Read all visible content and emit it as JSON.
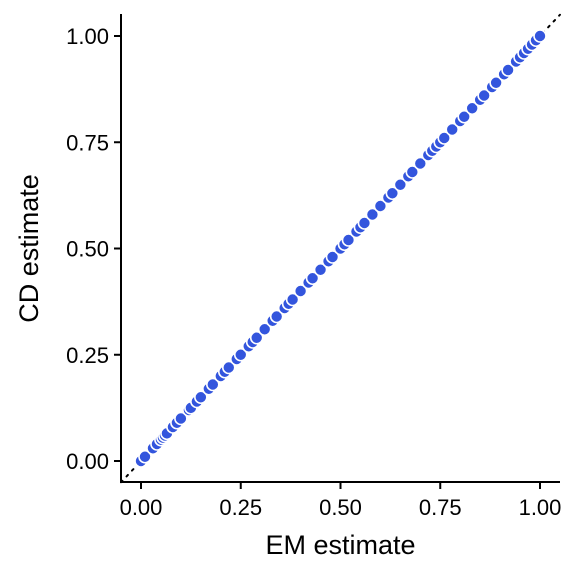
{
  "chart_data": {
    "type": "scatter",
    "title": "",
    "xlabel": "EM estimate",
    "ylabel": "CD estimate",
    "xlim": [
      -0.05,
      1.05
    ],
    "ylim": [
      -0.05,
      1.05
    ],
    "x_ticks": [
      0.0,
      0.25,
      0.5,
      0.75,
      1.0
    ],
    "y_ticks": [
      0.0,
      0.25,
      0.5,
      0.75,
      1.0
    ],
    "x_tick_labels": [
      "0.00",
      "0.25",
      "0.50",
      "0.75",
      "1.00"
    ],
    "y_tick_labels": [
      "0.00",
      "0.25",
      "0.50",
      "0.75",
      "1.00"
    ],
    "grid": false,
    "legend": "none",
    "reference_line": {
      "style": "dotted",
      "slope": 1,
      "intercept": 0,
      "color": "#000000"
    },
    "point_color": "#3355dd",
    "point_edge_color": "#ffffff",
    "series": [
      {
        "x": [
          0.0,
          0.01,
          0.03,
          0.04,
          0.05,
          0.055,
          0.06,
          0.065,
          0.08,
          0.09,
          0.1,
          0.12,
          0.125,
          0.14,
          0.15,
          0.17,
          0.18,
          0.2,
          0.21,
          0.22,
          0.24,
          0.25,
          0.27,
          0.28,
          0.29,
          0.31,
          0.33,
          0.34,
          0.36,
          0.37,
          0.38,
          0.4,
          0.42,
          0.43,
          0.45,
          0.47,
          0.48,
          0.5,
          0.51,
          0.52,
          0.54,
          0.55,
          0.56,
          0.58,
          0.6,
          0.62,
          0.63,
          0.65,
          0.67,
          0.68,
          0.7,
          0.72,
          0.73,
          0.74,
          0.75,
          0.76,
          0.78,
          0.8,
          0.81,
          0.83,
          0.85,
          0.86,
          0.88,
          0.89,
          0.91,
          0.92,
          0.94,
          0.95,
          0.96,
          0.97,
          0.98,
          0.99,
          1.0
        ],
        "y": [
          0.0,
          0.01,
          0.03,
          0.04,
          0.05,
          0.055,
          0.06,
          0.065,
          0.08,
          0.09,
          0.1,
          0.12,
          0.125,
          0.14,
          0.15,
          0.17,
          0.18,
          0.2,
          0.21,
          0.22,
          0.24,
          0.25,
          0.27,
          0.28,
          0.29,
          0.31,
          0.33,
          0.34,
          0.36,
          0.37,
          0.38,
          0.4,
          0.42,
          0.43,
          0.45,
          0.47,
          0.48,
          0.5,
          0.51,
          0.52,
          0.54,
          0.55,
          0.56,
          0.58,
          0.6,
          0.62,
          0.63,
          0.65,
          0.67,
          0.68,
          0.7,
          0.72,
          0.73,
          0.74,
          0.75,
          0.76,
          0.78,
          0.8,
          0.81,
          0.83,
          0.85,
          0.86,
          0.88,
          0.89,
          0.91,
          0.92,
          0.94,
          0.95,
          0.96,
          0.97,
          0.98,
          0.99,
          1.0
        ]
      }
    ]
  }
}
